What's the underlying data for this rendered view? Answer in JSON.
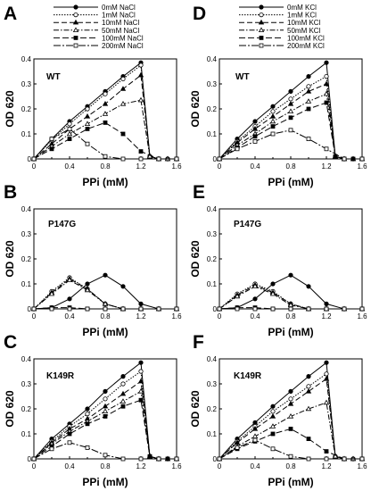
{
  "chart_data": [
    {
      "type": "line",
      "panel": "A",
      "strain": "WT",
      "xlabel": "PPi (mM)",
      "ylabel": "OD 620",
      "xlim": [
        0,
        1.6
      ],
      "ylim": [
        0,
        0.4
      ],
      "xticks": [
        "0",
        "0.4",
        "0.8",
        "1.2",
        "1.6"
      ],
      "yticks": [
        "0",
        "0.1",
        "0.2",
        "0.3",
        "0.4"
      ],
      "legend": [
        "0mM NaCl",
        "1mM NaCl",
        "10mM NaCl",
        "50mM NaCl",
        "100mM NaCl",
        "200mM NaCl"
      ],
      "series": [
        {
          "name": "0mM NaCl",
          "x": [
            0,
            0.2,
            0.4,
            0.6,
            0.8,
            1.0,
            1.2,
            1.3,
            1.4,
            1.5,
            1.6
          ],
          "y": [
            0,
            0.08,
            0.15,
            0.21,
            0.27,
            0.33,
            0.385,
            0.01,
            0,
            0,
            0
          ]
        },
        {
          "name": "1mM NaCl",
          "x": [
            0,
            0.2,
            0.4,
            0.6,
            0.8,
            1.0,
            1.2,
            1.3,
            1.4,
            1.5,
            1.6
          ],
          "y": [
            0,
            0.075,
            0.14,
            0.2,
            0.26,
            0.32,
            0.375,
            0.01,
            0,
            0,
            0
          ]
        },
        {
          "name": "10mM NaCl",
          "x": [
            0,
            0.2,
            0.4,
            0.6,
            0.8,
            1.0,
            1.2,
            1.3,
            1.4,
            1.5,
            1.6
          ],
          "y": [
            0,
            0.06,
            0.12,
            0.17,
            0.22,
            0.28,
            0.335,
            0.01,
            0,
            0,
            0
          ]
        },
        {
          "name": "50mM NaCl",
          "x": [
            0,
            0.2,
            0.4,
            0.6,
            0.8,
            1.0,
            1.2,
            1.3,
            1.4,
            1.5,
            1.6
          ],
          "y": [
            0,
            0.05,
            0.1,
            0.14,
            0.18,
            0.22,
            0.235,
            0.01,
            0,
            0,
            0
          ]
        },
        {
          "name": "100mM NaCl",
          "x": [
            0,
            0.2,
            0.4,
            0.6,
            0.8,
            1.0,
            1.2,
            1.4,
            1.6
          ],
          "y": [
            0,
            0.04,
            0.08,
            0.12,
            0.145,
            0.1,
            0.03,
            0,
            0
          ]
        },
        {
          "name": "200mM NaCl",
          "x": [
            0,
            0.2,
            0.4,
            0.6,
            0.8,
            1.0,
            1.2,
            1.4,
            1.6
          ],
          "y": [
            0,
            0.08,
            0.12,
            0.06,
            0.01,
            0,
            0,
            0,
            0
          ]
        }
      ]
    },
    {
      "type": "line",
      "panel": "B",
      "strain": "P147G",
      "xlabel": "PPi (mM)",
      "ylabel": "OD 620",
      "xlim": [
        0,
        1.6
      ],
      "ylim": [
        0,
        0.4
      ],
      "xticks": [
        "0",
        "0.4",
        "0.8",
        "1.2",
        "1.6"
      ],
      "yticks": [
        "0",
        "0.1",
        "0.2",
        "0.3",
        "0.4"
      ],
      "series": [
        {
          "name": "0mM NaCl",
          "x": [
            0,
            0.2,
            0.4,
            0.6,
            0.8,
            1.0,
            1.2,
            1.4,
            1.6
          ],
          "y": [
            0,
            0.005,
            0.04,
            0.1,
            0.135,
            0.09,
            0.02,
            0,
            0
          ]
        },
        {
          "name": "1mM NaCl",
          "x": [
            0,
            0.2,
            0.4,
            0.6,
            0.8,
            1.0,
            1.2,
            1.4,
            1.6
          ],
          "y": [
            0,
            0.07,
            0.125,
            0.08,
            0.02,
            0,
            0,
            0,
            0
          ]
        },
        {
          "name": "10mM NaCl",
          "x": [
            0,
            0.2,
            0.4,
            0.6,
            0.8,
            1.0,
            1.2,
            1.4,
            1.6
          ],
          "y": [
            0,
            0.065,
            0.12,
            0.08,
            0.02,
            0,
            0,
            0,
            0
          ]
        },
        {
          "name": "50mM NaCl",
          "x": [
            0,
            0.2,
            0.4,
            0.6,
            0.8,
            1.0,
            1.2,
            1.4,
            1.6
          ],
          "y": [
            0,
            0.06,
            0.115,
            0.075,
            0.02,
            0,
            0,
            0,
            0
          ]
        },
        {
          "name": "100mM NaCl",
          "x": [
            0,
            0.2,
            0.4,
            0.6,
            0.8,
            1.0,
            1.2,
            1.4,
            1.6
          ],
          "y": [
            0,
            0.005,
            0.005,
            0,
            0,
            0,
            0,
            0,
            0
          ]
        },
        {
          "name": "200mM NaCl",
          "x": [
            0,
            0.2,
            0.4,
            0.6,
            0.8,
            1.0,
            1.2,
            1.4,
            1.6
          ],
          "y": [
            0,
            0,
            0,
            0,
            0,
            0,
            0,
            0,
            0
          ]
        }
      ]
    },
    {
      "type": "line",
      "panel": "C",
      "strain": "K149R",
      "xlabel": "PPi (mM)",
      "ylabel": "OD 620",
      "xlim": [
        0,
        1.6
      ],
      "ylim": [
        0,
        0.4
      ],
      "xticks": [
        "0",
        "0.4",
        "0.8",
        "1.2",
        "1.6"
      ],
      "yticks": [
        "0",
        "0.1",
        "0.2",
        "0.3",
        "0.4"
      ],
      "series": [
        {
          "name": "0mM NaCl",
          "x": [
            0,
            0.2,
            0.4,
            0.6,
            0.8,
            1.0,
            1.2,
            1.3,
            1.4,
            1.5,
            1.6
          ],
          "y": [
            0,
            0.08,
            0.14,
            0.2,
            0.27,
            0.33,
            0.385,
            0.01,
            0,
            0,
            0
          ]
        },
        {
          "name": "1mM NaCl",
          "x": [
            0,
            0.2,
            0.4,
            0.6,
            0.8,
            1.0,
            1.2,
            1.3,
            1.4,
            1.5,
            1.6
          ],
          "y": [
            0,
            0.07,
            0.13,
            0.18,
            0.24,
            0.3,
            0.35,
            0.01,
            0,
            0,
            0
          ]
        },
        {
          "name": "10mM NaCl",
          "x": [
            0,
            0.2,
            0.4,
            0.6,
            0.8,
            1.0,
            1.2,
            1.3,
            1.4,
            1.5,
            1.6
          ],
          "y": [
            0,
            0.065,
            0.12,
            0.16,
            0.21,
            0.26,
            0.31,
            0.01,
            0,
            0,
            0
          ]
        },
        {
          "name": "50mM NaCl",
          "x": [
            0,
            0.2,
            0.4,
            0.6,
            0.8,
            1.0,
            1.2,
            1.3,
            1.4,
            1.5,
            1.6
          ],
          "y": [
            0,
            0.06,
            0.11,
            0.15,
            0.19,
            0.23,
            0.27,
            0.01,
            0,
            0,
            0
          ]
        },
        {
          "name": "100mM NaCl",
          "x": [
            0,
            0.2,
            0.4,
            0.6,
            0.8,
            1.0,
            1.2,
            1.3,
            1.4,
            1.5,
            1.6
          ],
          "y": [
            0,
            0.05,
            0.1,
            0.14,
            0.17,
            0.21,
            0.235,
            0.01,
            0,
            0,
            0
          ]
        },
        {
          "name": "200mM NaCl",
          "x": [
            0,
            0.2,
            0.4,
            0.6,
            0.8,
            1.0,
            1.2,
            1.4,
            1.6
          ],
          "y": [
            0,
            0.04,
            0.065,
            0.045,
            0.015,
            0,
            0,
            0,
            0
          ]
        }
      ]
    },
    {
      "type": "line",
      "panel": "D",
      "strain": "WT",
      "xlabel": "PPi (mM)",
      "ylabel": "OD 620",
      "xlim": [
        0,
        1.6
      ],
      "ylim": [
        0,
        0.4
      ],
      "xticks": [
        "0",
        "0.4",
        "0.8",
        "1.2",
        "1.6"
      ],
      "yticks": [
        "0",
        "0.1",
        "0.2",
        "0.3",
        "0.4"
      ],
      "legend": [
        "0mM KCl",
        "1mM KCl",
        "10mM KCl",
        "50mM KCl",
        "100mM KCl",
        "200mM KCl"
      ],
      "series": [
        {
          "name": "0mM KCl",
          "x": [
            0,
            0.2,
            0.4,
            0.6,
            0.8,
            1.0,
            1.2,
            1.3,
            1.4,
            1.5,
            1.6
          ],
          "y": [
            0,
            0.08,
            0.15,
            0.21,
            0.27,
            0.33,
            0.385,
            0.01,
            0,
            0,
            0
          ]
        },
        {
          "name": "1mM KCl",
          "x": [
            0,
            0.2,
            0.4,
            0.6,
            0.8,
            1.0,
            1.2,
            1.3,
            1.4,
            1.5,
            1.6
          ],
          "y": [
            0,
            0.07,
            0.13,
            0.19,
            0.24,
            0.29,
            0.33,
            0.01,
            0,
            0,
            0
          ]
        },
        {
          "name": "10mM KCl",
          "x": [
            0,
            0.2,
            0.4,
            0.6,
            0.8,
            1.0,
            1.2,
            1.3,
            1.4,
            1.5,
            1.6
          ],
          "y": [
            0,
            0.065,
            0.12,
            0.17,
            0.22,
            0.27,
            0.3,
            0.01,
            0,
            0,
            0
          ]
        },
        {
          "name": "50mM KCl",
          "x": [
            0,
            0.2,
            0.4,
            0.6,
            0.8,
            1.0,
            1.2,
            1.3,
            1.4,
            1.5,
            1.6
          ],
          "y": [
            0,
            0.055,
            0.1,
            0.15,
            0.19,
            0.23,
            0.26,
            0.01,
            0,
            0,
            0
          ]
        },
        {
          "name": "100mM KCl",
          "x": [
            0,
            0.2,
            0.4,
            0.6,
            0.8,
            1.0,
            1.2,
            1.3,
            1.4,
            1.5,
            1.6
          ],
          "y": [
            0,
            0.045,
            0.09,
            0.13,
            0.165,
            0.2,
            0.225,
            0.01,
            0,
            0,
            0
          ]
        },
        {
          "name": "200mM KCl",
          "x": [
            0,
            0.2,
            0.4,
            0.6,
            0.8,
            1.0,
            1.2,
            1.4,
            1.6
          ],
          "y": [
            0,
            0.04,
            0.07,
            0.1,
            0.115,
            0.08,
            0.04,
            0,
            0
          ]
        }
      ]
    },
    {
      "type": "line",
      "panel": "E",
      "strain": "P147G",
      "xlabel": "PPi (mM)",
      "ylabel": "OD 620",
      "xlim": [
        0,
        1.6
      ],
      "ylim": [
        0,
        0.4
      ],
      "xticks": [
        "0",
        "0.4",
        "0.8",
        "1.2",
        "1.6"
      ],
      "yticks": [
        "0",
        "0.1",
        "0.2",
        "0.3",
        "0.4"
      ],
      "series": [
        {
          "name": "0mM KCl",
          "x": [
            0,
            0.2,
            0.4,
            0.6,
            0.8,
            1.0,
            1.2,
            1.4,
            1.6
          ],
          "y": [
            0,
            0.005,
            0.04,
            0.1,
            0.135,
            0.09,
            0.02,
            0,
            0
          ]
        },
        {
          "name": "1mM KCl",
          "x": [
            0,
            0.2,
            0.4,
            0.6,
            0.8,
            1.0,
            1.2,
            1.4,
            1.6
          ],
          "y": [
            0,
            0.06,
            0.1,
            0.07,
            0.02,
            0,
            0,
            0,
            0
          ]
        },
        {
          "name": "10mM KCl",
          "x": [
            0,
            0.2,
            0.4,
            0.6,
            0.8,
            1.0,
            1.2,
            1.4,
            1.6
          ],
          "y": [
            0,
            0.055,
            0.095,
            0.065,
            0.02,
            0,
            0,
            0,
            0
          ]
        },
        {
          "name": "50mM KCl",
          "x": [
            0,
            0.2,
            0.4,
            0.6,
            0.8,
            1.0,
            1.2,
            1.4,
            1.6
          ],
          "y": [
            0,
            0.05,
            0.09,
            0.06,
            0.015,
            0,
            0,
            0,
            0
          ]
        },
        {
          "name": "100mM KCl",
          "x": [
            0,
            0.2,
            0.4,
            0.6,
            0.8,
            1.0,
            1.2,
            1.4,
            1.6
          ],
          "y": [
            0,
            0.005,
            0.005,
            0,
            0,
            0,
            0,
            0,
            0
          ]
        },
        {
          "name": "200mM KCl",
          "x": [
            0,
            0.2,
            0.4,
            0.6,
            0.8,
            1.0,
            1.2,
            1.4,
            1.6
          ],
          "y": [
            0,
            0,
            0,
            0,
            0,
            0,
            0,
            0,
            0
          ]
        }
      ]
    },
    {
      "type": "line",
      "panel": "F",
      "strain": "K149R",
      "xlabel": "PPi (mM)",
      "ylabel": "OD 620",
      "xlim": [
        0,
        1.6
      ],
      "ylim": [
        0,
        0.4
      ],
      "xticks": [
        "0",
        "0.4",
        "0.8",
        "1.2",
        "1.6"
      ],
      "yticks": [
        "0",
        "0.1",
        "0.2",
        "0.3",
        "0.4"
      ],
      "series": [
        {
          "name": "0mM KCl",
          "x": [
            0,
            0.2,
            0.4,
            0.6,
            0.8,
            1.0,
            1.2,
            1.3,
            1.4,
            1.5,
            1.6
          ],
          "y": [
            0,
            0.08,
            0.145,
            0.21,
            0.27,
            0.33,
            0.385,
            0.01,
            0,
            0,
            0
          ]
        },
        {
          "name": "1mM KCl",
          "x": [
            0,
            0.2,
            0.4,
            0.6,
            0.8,
            1.0,
            1.2,
            1.3,
            1.4,
            1.5,
            1.6
          ],
          "y": [
            0,
            0.07,
            0.13,
            0.19,
            0.24,
            0.29,
            0.34,
            0.01,
            0,
            0,
            0
          ]
        },
        {
          "name": "10mM KCl",
          "x": [
            0,
            0.2,
            0.4,
            0.6,
            0.8,
            1.0,
            1.2,
            1.3,
            1.4,
            1.5,
            1.6
          ],
          "y": [
            0,
            0.065,
            0.12,
            0.17,
            0.22,
            0.27,
            0.32,
            0.01,
            0,
            0,
            0
          ]
        },
        {
          "name": "50mM KCl",
          "x": [
            0,
            0.2,
            0.4,
            0.6,
            0.8,
            1.0,
            1.2,
            1.3,
            1.4,
            1.5,
            1.6
          ],
          "y": [
            0,
            0.05,
            0.09,
            0.13,
            0.17,
            0.2,
            0.225,
            0.01,
            0,
            0,
            0
          ]
        },
        {
          "name": "100mM KCl",
          "x": [
            0,
            0.2,
            0.4,
            0.6,
            0.8,
            1.0,
            1.2,
            1.4,
            1.6
          ],
          "y": [
            0,
            0.04,
            0.07,
            0.1,
            0.12,
            0.08,
            0.03,
            0,
            0
          ]
        },
        {
          "name": "200mM KCl",
          "x": [
            0,
            0.2,
            0.4,
            0.6,
            0.8,
            1.0,
            1.2,
            1.4,
            1.6
          ],
          "y": [
            0,
            0.045,
            0.075,
            0.04,
            0.01,
            0,
            0,
            0,
            0
          ]
        }
      ]
    }
  ]
}
